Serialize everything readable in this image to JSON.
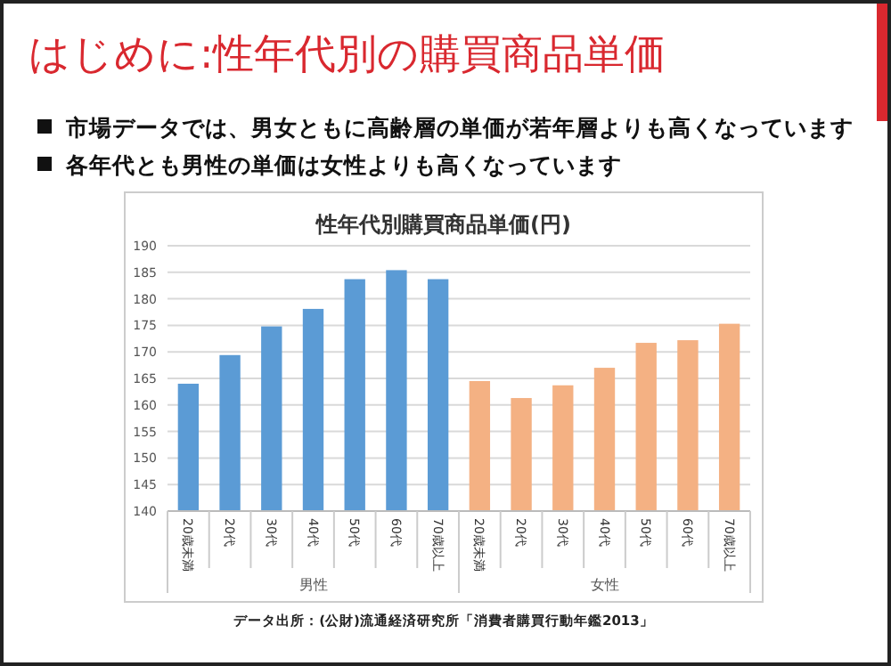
{
  "chart_data": {
    "type": "bar",
    "title": "はじめに:性年代別の購買商品単価",
    "subtitle": "性年代別購買商品単価(円)",
    "annotations": [
      "市場データでは、男女ともに高齢層の単価が若年層よりも高くなっています",
      "各年代とも男性の単価は女性よりも高くなっています",
      "男性",
      "女性",
      "データ出所：(公財)流通経済研究所「消費者購買行動年鑑2013」"
    ],
    "categories": [
      "20歳未満",
      "20代",
      "30代",
      "40代",
      "50代",
      "60代",
      "70歳以上",
      "20歳未満",
      "20代",
      "30代",
      "40代",
      "50代",
      "60代",
      "70歳以上"
    ],
    "values": [
      164,
      169.4,
      174.8,
      178.1,
      183.7,
      185.4,
      183.7,
      164.5,
      161.3,
      163.7,
      167,
      171.7,
      172.2,
      175.3
    ],
    "colors": [
      "#5b9bd5",
      "#5b9bd5",
      "#5b9bd5",
      "#5b9bd5",
      "#5b9bd5",
      "#5b9bd5",
      "#5b9bd5",
      "#f4b183",
      "#f4b183",
      "#f4b183",
      "#f4b183",
      "#f4b183",
      "#f4b183",
      "#f4b183"
    ],
    "ylim": [
      140,
      190
    ],
    "yticks": [
      140,
      145,
      150,
      155,
      160,
      165,
      170,
      175,
      180,
      185,
      190
    ],
    "grid": "y"
  }
}
